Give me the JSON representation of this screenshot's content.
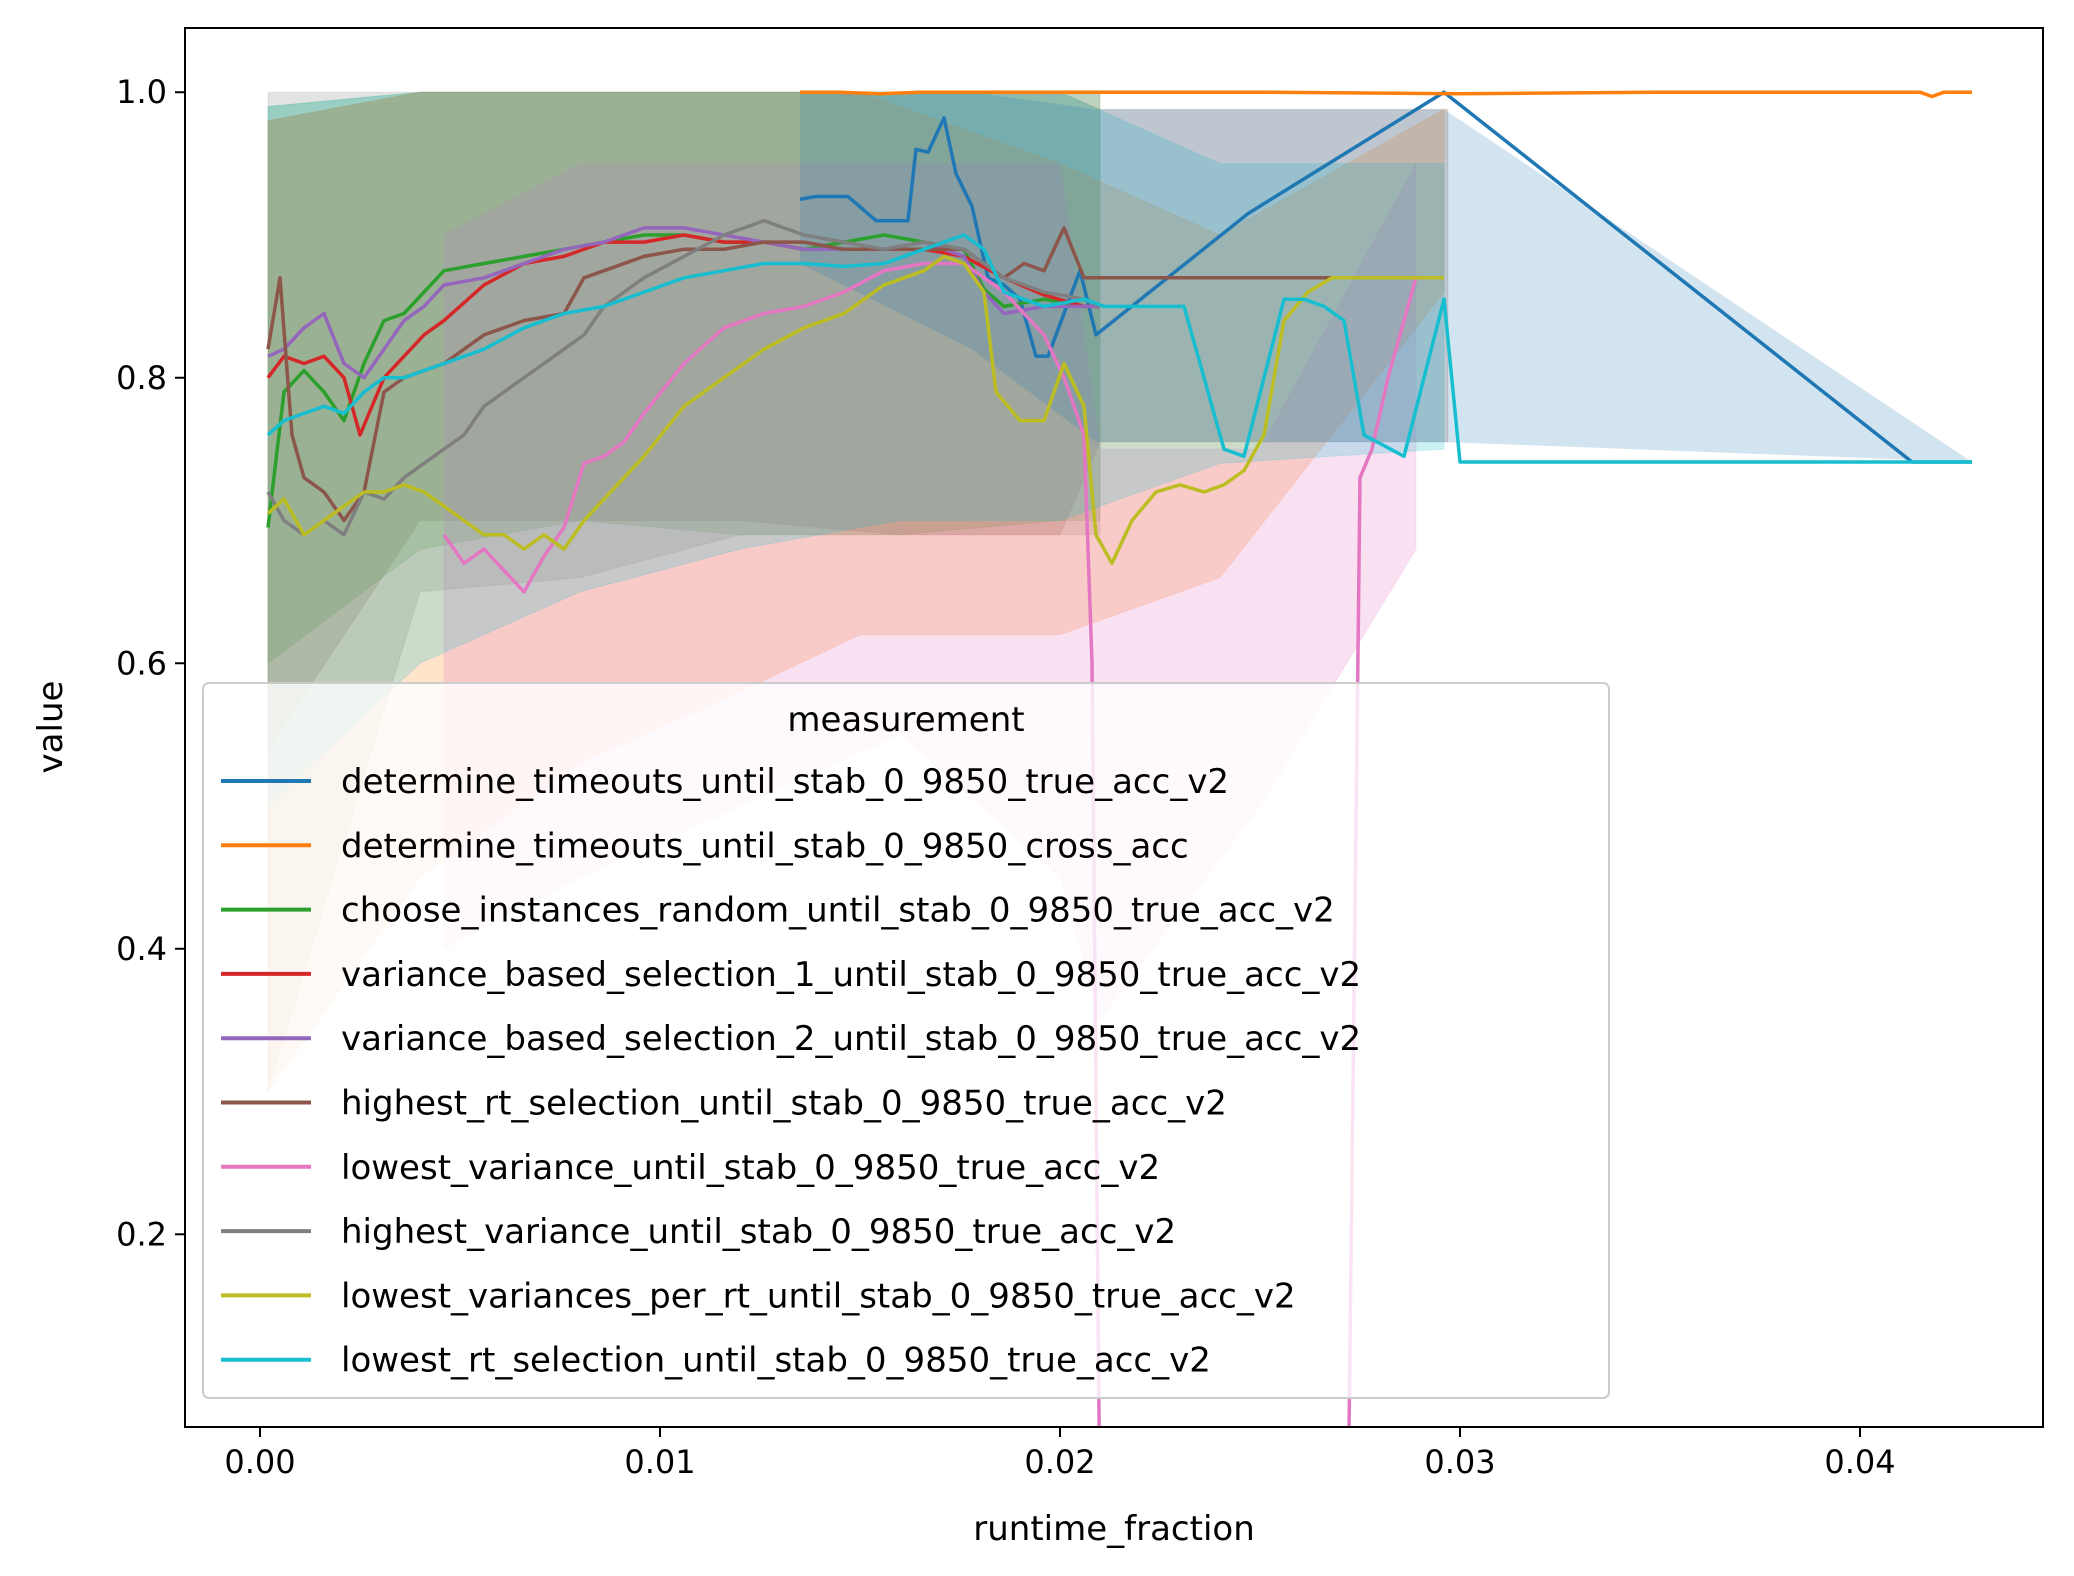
{
  "chart_data": {
    "type": "line",
    "title": "",
    "xlabel": "runtime_fraction",
    "ylabel": "value",
    "xlim": [
      -0.002,
      0.045
    ],
    "ylim": [
      0.065,
      1.045
    ],
    "xticks": [
      0.0,
      0.01,
      0.02,
      0.03,
      0.04
    ],
    "xtick_labels": [
      "0.00",
      "0.01",
      "0.02",
      "0.03",
      "0.04"
    ],
    "yticks": [
      0.2,
      0.4,
      0.6,
      0.8,
      1.0
    ],
    "ytick_labels": [
      "0.2",
      "0.4",
      "0.6",
      "0.8",
      "1.0"
    ],
    "grid": false,
    "legend": {
      "title": "measurement",
      "placement": "lower-left"
    },
    "series": [
      {
        "name": "determine_timeouts_until_stab_0_9850_true_acc_v2",
        "color": "#1f77b4",
        "x": [
          0.0135,
          0.0139,
          0.0147,
          0.0154,
          0.0162,
          0.0164,
          0.0167,
          0.0171,
          0.0174,
          0.0178,
          0.0182,
          0.0186,
          0.019,
          0.0194,
          0.0197,
          0.0201,
          0.0205,
          0.0209,
          0.0247,
          0.0296,
          0.0413,
          0.0428
        ],
        "y": [
          0.925,
          0.927,
          0.927,
          0.91,
          0.91,
          0.96,
          0.958,
          0.982,
          0.943,
          0.92,
          0.87,
          0.865,
          0.855,
          0.815,
          0.815,
          0.845,
          0.875,
          0.83,
          0.915,
          1.0,
          0.741,
          0.741
        ],
        "band_x": [
          0.0135,
          0.0178,
          0.0209,
          0.0296,
          0.0428
        ],
        "band_lo": [
          0.88,
          0.82,
          0.755,
          0.755,
          0.741
        ],
        "band_hi": [
          1.0,
          1.0,
          0.988,
          0.988,
          0.741
        ]
      },
      {
        "name": "determine_timeouts_until_stab_0_9850_cross_acc",
        "color": "#ff7f0e",
        "x": [
          0.0135,
          0.0145,
          0.0155,
          0.0165,
          0.02,
          0.025,
          0.03,
          0.035,
          0.04,
          0.0415,
          0.0418,
          0.0421,
          0.0428
        ],
        "y": [
          1.0,
          1.0,
          0.999,
          1.0,
          1.0,
          1.0,
          0.999,
          1.0,
          1.0,
          1.0,
          0.997,
          1.0,
          1.0
        ]
      },
      {
        "name": "choose_instances_random_until_stab_0_9850_true_acc_v2",
        "color": "#2ca02c",
        "x": [
          0.0002,
          0.0006,
          0.0011,
          0.0016,
          0.0021,
          0.0026,
          0.0031,
          0.0036,
          0.0041,
          0.0046,
          0.0056,
          0.0066,
          0.0076,
          0.0086,
          0.0096,
          0.0106,
          0.0116,
          0.0126,
          0.0136,
          0.0146,
          0.0156,
          0.0166,
          0.0176,
          0.0181,
          0.0186,
          0.0196,
          0.0206,
          0.021
        ],
        "y": [
          0.695,
          0.79,
          0.805,
          0.79,
          0.77,
          0.81,
          0.84,
          0.845,
          0.86,
          0.875,
          0.88,
          0.885,
          0.89,
          0.895,
          0.9,
          0.9,
          0.895,
          0.895,
          0.89,
          0.895,
          0.9,
          0.895,
          0.89,
          0.862,
          0.85,
          0.855,
          0.85,
          0.85
        ]
      },
      {
        "name": "variance_based_selection_1_until_stab_0_9850_true_acc_v2",
        "color": "#d62728",
        "x": [
          0.0002,
          0.0006,
          0.0011,
          0.0016,
          0.0021,
          0.0025,
          0.0031,
          0.0036,
          0.0041,
          0.0046,
          0.0056,
          0.0066,
          0.0076,
          0.0086,
          0.0096,
          0.0106,
          0.0116,
          0.0126,
          0.0136,
          0.0146,
          0.0156,
          0.0166,
          0.0176,
          0.0186,
          0.0196,
          0.0206,
          0.021
        ],
        "y": [
          0.8,
          0.815,
          0.81,
          0.815,
          0.8,
          0.76,
          0.8,
          0.815,
          0.83,
          0.84,
          0.865,
          0.88,
          0.885,
          0.895,
          0.895,
          0.9,
          0.895,
          0.895,
          0.89,
          0.89,
          0.89,
          0.89,
          0.885,
          0.87,
          0.858,
          0.85,
          0.85
        ]
      },
      {
        "name": "variance_based_selection_2_until_stab_0_9850_true_acc_v2",
        "color": "#9467bd",
        "x": [
          0.0002,
          0.0006,
          0.0011,
          0.0016,
          0.0021,
          0.0026,
          0.0031,
          0.0036,
          0.0041,
          0.0046,
          0.0056,
          0.0066,
          0.0076,
          0.0086,
          0.0096,
          0.0106,
          0.0116,
          0.0126,
          0.0136,
          0.0146,
          0.0156,
          0.0166,
          0.0176,
          0.0181,
          0.0186,
          0.0196,
          0.0206,
          0.021
        ],
        "y": [
          0.815,
          0.82,
          0.835,
          0.845,
          0.81,
          0.8,
          0.82,
          0.84,
          0.85,
          0.865,
          0.87,
          0.88,
          0.89,
          0.895,
          0.905,
          0.905,
          0.9,
          0.895,
          0.89,
          0.89,
          0.89,
          0.895,
          0.885,
          0.86,
          0.845,
          0.85,
          0.85,
          0.85
        ]
      },
      {
        "name": "highest_rt_selection_until_stab_0_9850_true_acc_v2",
        "color": "#8c564b",
        "x": [
          0.0002,
          0.0005,
          0.0008,
          0.0011,
          0.0016,
          0.0021,
          0.0026,
          0.0031,
          0.0036,
          0.0046,
          0.0056,
          0.0066,
          0.0076,
          0.0081,
          0.0086,
          0.0096,
          0.0106,
          0.0116,
          0.0126,
          0.0136,
          0.0146,
          0.0156,
          0.0166,
          0.0176,
          0.0186,
          0.0191,
          0.0196,
          0.0201,
          0.0206,
          0.0211,
          0.025,
          0.027
        ],
        "y": [
          0.82,
          0.87,
          0.76,
          0.73,
          0.72,
          0.7,
          0.72,
          0.79,
          0.8,
          0.81,
          0.83,
          0.84,
          0.845,
          0.87,
          0.875,
          0.885,
          0.89,
          0.89,
          0.895,
          0.895,
          0.89,
          0.89,
          0.89,
          0.89,
          0.87,
          0.88,
          0.875,
          0.905,
          0.87,
          0.87,
          0.87,
          0.87
        ]
      },
      {
        "name": "lowest_variance_until_stab_0_9850_true_acc_v2",
        "color": "#e377c2",
        "x": [
          0.0046,
          0.0051,
          0.0056,
          0.0061,
          0.0066,
          0.0071,
          0.0076,
          0.0081,
          0.0086,
          0.0091,
          0.0096,
          0.0106,
          0.0116,
          0.0126,
          0.0136,
          0.0146,
          0.0156,
          0.0166,
          0.0176,
          0.0186,
          0.0196,
          0.0201,
          0.0206,
          0.0208,
          0.021,
          0.0272,
          0.0275,
          0.0278,
          0.0282,
          0.0289
        ],
        "y": [
          0.69,
          0.67,
          0.68,
          0.665,
          0.65,
          0.675,
          0.695,
          0.74,
          0.745,
          0.755,
          0.775,
          0.81,
          0.835,
          0.845,
          0.85,
          0.86,
          0.875,
          0.88,
          0.88,
          0.86,
          0.83,
          0.8,
          0.76,
          0.6,
          0.0,
          0.0,
          0.73,
          0.75,
          0.8,
          0.87
        ]
      },
      {
        "name": "highest_variance_until_stab_0_9850_true_acc_v2",
        "color": "#7f7f7f",
        "x": [
          0.0002,
          0.0006,
          0.0011,
          0.0016,
          0.0021,
          0.0026,
          0.0031,
          0.0036,
          0.0041,
          0.0046,
          0.0051,
          0.0056,
          0.0061,
          0.0066,
          0.0071,
          0.0076,
          0.0081,
          0.0086,
          0.0096,
          0.0106,
          0.0116,
          0.0126,
          0.0131,
          0.0136,
          0.0146,
          0.0156,
          0.0166,
          0.0176,
          0.0186,
          0.0196,
          0.0206,
          0.021
        ],
        "y": [
          0.72,
          0.7,
          0.69,
          0.7,
          0.69,
          0.72,
          0.715,
          0.73,
          0.74,
          0.75,
          0.76,
          0.78,
          0.79,
          0.8,
          0.81,
          0.82,
          0.83,
          0.85,
          0.87,
          0.885,
          0.9,
          0.91,
          0.905,
          0.9,
          0.895,
          0.89,
          0.895,
          0.89,
          0.87,
          0.86,
          0.855,
          0.85
        ]
      },
      {
        "name": "lowest_variances_per_rt_until_stab_0_9850_true_acc_v2",
        "color": "#bcbd22",
        "x": [
          0.0002,
          0.0006,
          0.0011,
          0.0016,
          0.0021,
          0.0026,
          0.0031,
          0.0036,
          0.0041,
          0.0046,
          0.0051,
          0.0056,
          0.0061,
          0.0066,
          0.0071,
          0.0076,
          0.0081,
          0.0086,
          0.0096,
          0.0106,
          0.0116,
          0.0126,
          0.0136,
          0.0146,
          0.0156,
          0.0166,
          0.0171,
          0.0176,
          0.0181,
          0.0184,
          0.019,
          0.0196,
          0.0201,
          0.0206,
          0.0209,
          0.0213,
          0.0218,
          0.0224,
          0.023,
          0.0236,
          0.0241,
          0.0246,
          0.0251,
          0.0256,
          0.0262,
          0.0268,
          0.0276,
          0.0296
        ],
        "y": [
          0.705,
          0.715,
          0.69,
          0.7,
          0.71,
          0.72,
          0.72,
          0.725,
          0.72,
          0.71,
          0.7,
          0.69,
          0.69,
          0.68,
          0.69,
          0.68,
          0.7,
          0.715,
          0.745,
          0.78,
          0.8,
          0.82,
          0.835,
          0.845,
          0.865,
          0.875,
          0.885,
          0.88,
          0.86,
          0.79,
          0.77,
          0.77,
          0.81,
          0.78,
          0.69,
          0.67,
          0.7,
          0.72,
          0.725,
          0.72,
          0.725,
          0.735,
          0.76,
          0.84,
          0.86,
          0.87,
          0.87,
          0.87
        ]
      },
      {
        "name": "lowest_rt_selection_until_stab_0_9850_true_acc_v2",
        "color": "#17becf",
        "x": [
          0.0002,
          0.0006,
          0.0011,
          0.0016,
          0.0021,
          0.0026,
          0.0031,
          0.0036,
          0.0046,
          0.0056,
          0.0066,
          0.0076,
          0.0086,
          0.0096,
          0.0106,
          0.0116,
          0.0126,
          0.0136,
          0.0146,
          0.0156,
          0.0166,
          0.0171,
          0.0176,
          0.0181,
          0.0186,
          0.0196,
          0.0206,
          0.0211,
          0.0221,
          0.0231,
          0.0236,
          0.0241,
          0.0246,
          0.0251,
          0.0256,
          0.0261,
          0.0266,
          0.0271,
          0.0276,
          0.0286,
          0.0296,
          0.03,
          0.0428
        ],
        "y": [
          0.76,
          0.77,
          0.775,
          0.78,
          0.775,
          0.79,
          0.8,
          0.8,
          0.81,
          0.82,
          0.835,
          0.845,
          0.85,
          0.86,
          0.87,
          0.875,
          0.88,
          0.88,
          0.878,
          0.88,
          0.89,
          0.895,
          0.9,
          0.89,
          0.86,
          0.85,
          0.855,
          0.85,
          0.85,
          0.85,
          0.8,
          0.75,
          0.745,
          0.8,
          0.855,
          0.855,
          0.85,
          0.84,
          0.76,
          0.745,
          0.855,
          0.741,
          0.741
        ]
      }
    ],
    "bands": [
      {
        "color": "#8c564b",
        "x": [
          0.0002,
          0.004,
          0.008,
          0.012,
          0.016,
          0.02,
          0.021,
          0.0297
        ],
        "lo": [
          0.54,
          0.7,
          0.7,
          0.7,
          0.69,
          0.69,
          0.755,
          0.755
        ],
        "hi": [
          0.98,
          1.0,
          1.0,
          1.0,
          1.0,
          1.0,
          0.988,
          0.988
        ]
      },
      {
        "color": "#2ca02c",
        "x": [
          0.0002,
          0.004,
          0.008,
          0.012,
          0.016,
          0.02,
          0.021
        ],
        "lo": [
          0.6,
          0.68,
          0.7,
          0.69,
          0.69,
          0.7,
          0.7
        ],
        "hi": [
          0.99,
          1.0,
          1.0,
          1.0,
          1.0,
          1.0,
          1.0
        ]
      },
      {
        "color": "#7f7f7f",
        "x": [
          0.0002,
          0.004,
          0.008,
          0.012,
          0.016,
          0.02,
          0.021
        ],
        "lo": [
          0.3,
          0.65,
          0.66,
          0.69,
          0.69,
          0.69,
          0.69
        ],
        "hi": [
          1.0,
          1.0,
          1.0,
          1.0,
          1.0,
          1.0,
          1.0
        ]
      },
      {
        "color": "#ff7f0e",
        "x": [
          0.0002,
          0.004,
          0.008,
          0.012,
          0.015,
          0.02,
          0.024,
          0.0296
        ],
        "lo": [
          0.3,
          0.45,
          0.53,
          0.58,
          0.62,
          0.62,
          0.66,
          0.86
        ],
        "hi": [
          0.98,
          1.0,
          1.0,
          1.0,
          1.0,
          0.95,
          0.9,
          0.988
        ]
      },
      {
        "color": "#e377c2",
        "x": [
          0.0046,
          0.008,
          0.012,
          0.016,
          0.02,
          0.021,
          0.025,
          0.0289
        ],
        "lo": [
          0.4,
          0.45,
          0.5,
          0.55,
          0.45,
          0.35,
          0.5,
          0.68
        ],
        "hi": [
          0.9,
          0.95,
          0.95,
          0.95,
          0.95,
          0.75,
          0.75,
          0.95
        ]
      },
      {
        "color": "#17becf",
        "x": [
          0.0002,
          0.004,
          0.008,
          0.012,
          0.016,
          0.02,
          0.024,
          0.0296
        ],
        "lo": [
          0.5,
          0.6,
          0.65,
          0.68,
          0.7,
          0.7,
          0.74,
          0.75
        ],
        "hi": [
          0.99,
          1.0,
          1.0,
          1.0,
          1.0,
          1.0,
          0.95,
          0.95
        ]
      }
    ]
  }
}
